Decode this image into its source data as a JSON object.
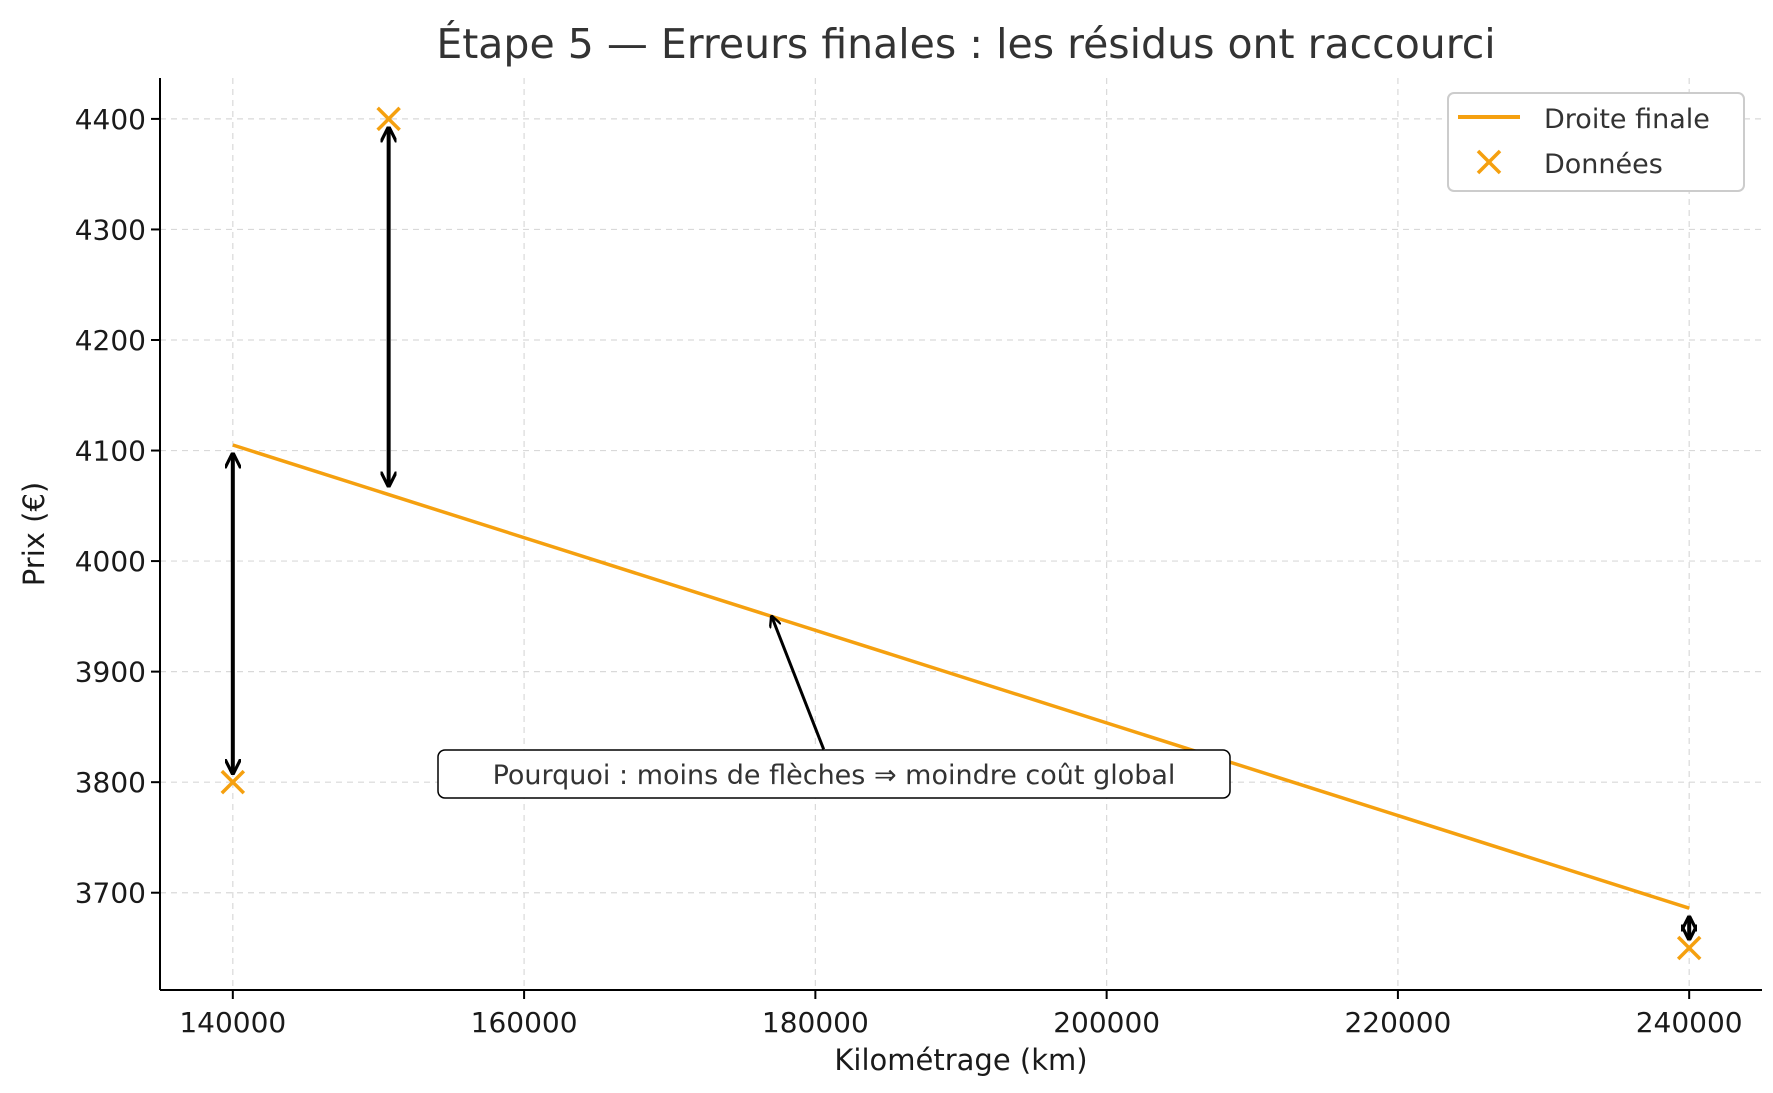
{
  "chart_data": {
    "type": "line",
    "title": "Étape 5 — Erreurs finales : les résidus ont raccourci",
    "xlabel": "Kilométrage (km)",
    "ylabel": "Prix (€)",
    "xlim": [
      135000,
      245000
    ],
    "ylim": [
      3612,
      4437
    ],
    "x_ticks": [
      140000,
      160000,
      180000,
      200000,
      220000,
      240000
    ],
    "x_tick_labels": [
      "140000",
      "160000",
      "180000",
      "200000",
      "220000",
      "240000"
    ],
    "y_ticks": [
      3700,
      3800,
      3900,
      4000,
      4100,
      4200,
      4300,
      4400
    ],
    "y_tick_labels": [
      "3700",
      "3800",
      "3900",
      "4000",
      "4100",
      "4200",
      "4300",
      "4400"
    ],
    "grid": true,
    "legend_position": "top-right",
    "series": [
      {
        "name": "Droite finale",
        "kind": "line",
        "color": "#f5a00f",
        "x": [
          140000,
          240000
        ],
        "y": [
          4105,
          3686
        ]
      },
      {
        "name": "Données",
        "kind": "scatter",
        "marker": "x",
        "color": "#f5a00f",
        "x": [
          140000,
          150700,
          240000
        ],
        "y": [
          3800,
          4400,
          3650
        ]
      }
    ],
    "residuals": [
      {
        "x": 140000,
        "y_from": 4105,
        "y_to": 3800
      },
      {
        "x": 150700,
        "y_from": 4060,
        "y_to": 4400
      },
      {
        "x": 240000,
        "y_from": 3686,
        "y_to": 3650
      }
    ],
    "annotation": {
      "text": "Pourquoi : moins de flèches ⇒ moindre coût global",
      "text_x": 155000,
      "text_y": 3808,
      "arrow_to_x": 177000,
      "arrow_to_y": 3950
    }
  }
}
